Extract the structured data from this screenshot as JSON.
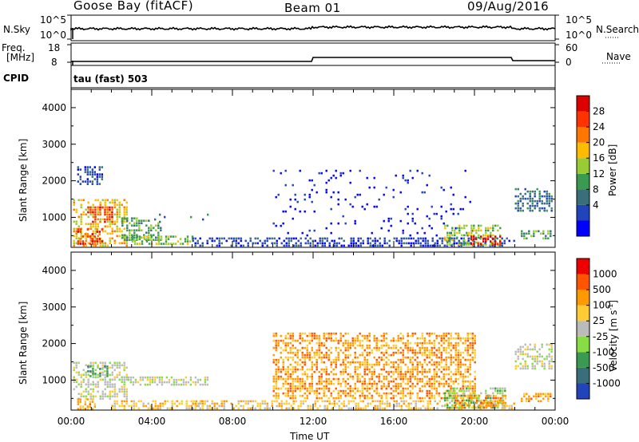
{
  "header": {
    "station": "Goose Bay (fitACF)",
    "beam": "Beam 01",
    "date": "09/Aug/2016"
  },
  "top_panels": {
    "nsky_label": "N.Sky",
    "nsky_ticks": [
      "10^5",
      "10^0"
    ],
    "nsearch_label": "N.Search",
    "nsearch_ticks": [
      "10^5",
      "10^0"
    ],
    "freq_label_1": "Freq.",
    "freq_label_2": "[MHz]",
    "freq_ticks": [
      "18",
      "8"
    ],
    "nave_label": "Nave",
    "nave_ticks": [
      "60",
      "0"
    ],
    "cpid_label": "CPID",
    "cpid_value": "tau (fast) 503"
  },
  "chart_data": [
    {
      "type": "heatmap",
      "name": "power",
      "ylabel": "Slant Range [km]",
      "xlabel": "Time UT",
      "xlim": [
        0,
        24
      ],
      "ylim": [
        180,
        4500
      ],
      "x_tick_labels": [
        "00:00",
        "04:00",
        "08:00",
        "12:00",
        "16:00",
        "20:00",
        "00:00"
      ],
      "y_tick_labels": [
        "1000",
        "2000",
        "3000",
        "4000"
      ],
      "colorbar_label": "Power [dB]",
      "colorbar_ticks": [
        "28",
        "24",
        "20",
        "16",
        "12",
        "8",
        "4"
      ],
      "colors": [
        "#0000ff",
        "#2244bb",
        "#3a6e7a",
        "#3a9a50",
        "#99cc33",
        "#ffbb00",
        "#ff7700",
        "#ff3300",
        "#dd0000"
      ],
      "regions": [
        {
          "t": [
            0.3,
            1.5
          ],
          "r": [
            1900,
            2400
          ],
          "level": 1
        },
        {
          "t": [
            0.1,
            2.8
          ],
          "r": [
            200,
            1500
          ],
          "level": 5
        },
        {
          "t": [
            0.8,
            2.0
          ],
          "r": [
            900,
            1300
          ],
          "level": 7
        },
        {
          "t": [
            0.3,
            1.5
          ],
          "r": [
            300,
            700
          ],
          "level": 7
        },
        {
          "t": [
            2.5,
            4.5
          ],
          "r": [
            400,
            1000
          ],
          "level": 3
        },
        {
          "t": [
            4.0,
            6.8
          ],
          "r": [
            900,
            1100
          ],
          "level": 2
        },
        {
          "t": [
            3.0,
            6.0
          ],
          "r": [
            300,
            500
          ],
          "level": 4
        },
        {
          "t": [
            6.0,
            22.0
          ],
          "r": [
            200,
            450
          ],
          "level": 1
        },
        {
          "t": [
            10.0,
            20.0
          ],
          "r": [
            500,
            2300
          ],
          "level": 0
        },
        {
          "t": [
            18.5,
            21.3
          ],
          "r": [
            250,
            800
          ],
          "level": 4
        },
        {
          "t": [
            19.8,
            21.3
          ],
          "r": [
            250,
            500
          ],
          "level": 8
        },
        {
          "t": [
            22.0,
            23.8
          ],
          "r": [
            1200,
            1800
          ],
          "level": 2
        },
        {
          "t": [
            22.3,
            23.8
          ],
          "r": [
            450,
            650
          ],
          "level": 3
        }
      ]
    },
    {
      "type": "heatmap",
      "name": "velocity",
      "ylabel": "Slant Range [km]",
      "xlabel": "Time UT",
      "xlim": [
        0,
        24
      ],
      "ylim": [
        180,
        4500
      ],
      "x_tick_labels": [
        "00:00",
        "04:00",
        "08:00",
        "12:00",
        "16:00",
        "20:00",
        "00:00"
      ],
      "y_tick_labels": [
        "1000",
        "2000",
        "3000",
        "4000"
      ],
      "colorbar_label": "Velocity [m s^-1]",
      "colorbar_ticks": [
        "1000",
        "500",
        "100",
        "25",
        "-25",
        "-100",
        "-500",
        "-1000"
      ],
      "colors": [
        "#2244bb",
        "#3a6e7a",
        "#3a9a50",
        "#88dd44",
        "#bbbbbb",
        "#ffcc33",
        "#ff9900",
        "#ff5500",
        "#ee0000"
      ],
      "regions": [
        {
          "t": [
            0.1,
            2.8
          ],
          "r": [
            500,
            1500
          ],
          "level": 4
        },
        {
          "t": [
            0.8,
            1.8
          ],
          "r": [
            1100,
            1400
          ],
          "level": 2
        },
        {
          "t": [
            0.3,
            1.2
          ],
          "r": [
            200,
            500
          ],
          "level": 6
        },
        {
          "t": [
            2.0,
            6.5
          ],
          "r": [
            250,
            450
          ],
          "level": 5
        },
        {
          "t": [
            2.8,
            6.8
          ],
          "r": [
            850,
            1100
          ],
          "level": 4
        },
        {
          "t": [
            6.0,
            22.0
          ],
          "r": [
            200,
            450
          ],
          "level": 5
        },
        {
          "t": [
            10.0,
            20.0
          ],
          "r": [
            500,
            2300
          ],
          "level": 6
        },
        {
          "t": [
            18.5,
            21.5
          ],
          "r": [
            250,
            800
          ],
          "level": 3
        },
        {
          "t": [
            19.0,
            21.5
          ],
          "r": [
            250,
            600
          ],
          "level": 6
        },
        {
          "t": [
            22.0,
            23.8
          ],
          "r": [
            1300,
            2000
          ],
          "level": 4
        },
        {
          "t": [
            22.3,
            23.8
          ],
          "r": [
            450,
            650
          ],
          "level": 6
        }
      ]
    }
  ]
}
